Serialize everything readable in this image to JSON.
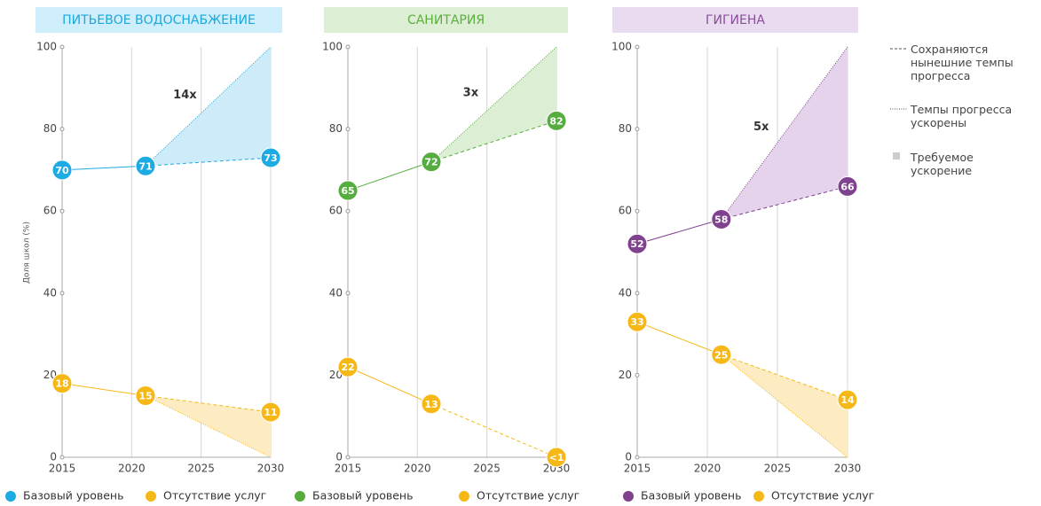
{
  "chart_data": [
    {
      "type": "line",
      "title": "ПИТЬЕВОЕ ВОДОСНАБЖЕНИЕ",
      "ylabel": "Доля школ (%)",
      "title_color": "#1ca8dd",
      "title_bg": "#cdeefa",
      "x": [
        2015,
        2021,
        2030
      ],
      "xlim": [
        2015,
        2030
      ],
      "xticks": [
        2015,
        2020,
        2025,
        2030
      ],
      "ylim": [
        0,
        100
      ],
      "yticks": [
        0,
        20,
        40,
        60,
        80,
        100
      ],
      "grid": true,
      "annotation": "14x",
      "series": [
        {
          "name": "Базовый уровень",
          "color": "#1cabe2",
          "shade": "#cdebf8",
          "values": [
            70,
            71,
            73
          ],
          "accelerated_target": 100
        },
        {
          "name": "Отсутствие услуг",
          "color": "#f6b816",
          "shade": "#fdebc2",
          "values": [
            18,
            15,
            11
          ],
          "accelerated_target": 0
        }
      ]
    },
    {
      "type": "line",
      "title": "САНИТАРИЯ",
      "title_color": "#5cae3e",
      "title_bg": "#dcefd5",
      "x": [
        2015,
        2021,
        2030
      ],
      "xlim": [
        2015,
        2030
      ],
      "xticks": [
        2015,
        2020,
        2025,
        2030
      ],
      "ylim": [
        0,
        100
      ],
      "yticks": [
        0,
        20,
        40,
        60,
        80,
        100
      ],
      "grid": true,
      "annotation": "3x",
      "series": [
        {
          "name": "Базовый уровень",
          "color": "#56ad3f",
          "shade": "#dcefd5",
          "values": [
            65,
            72,
            82
          ],
          "accelerated_target": 100
        },
        {
          "name": "Отсутствие услуг",
          "color": "#f6b816",
          "shade": "#fdebc2",
          "values": [
            22,
            13,
            0
          ],
          "value_labels": [
            "22",
            "13",
            "<1"
          ]
        }
      ]
    },
    {
      "type": "line",
      "title": "ГИГИЕНА",
      "title_color": "#8a4d9a",
      "title_bg": "#eadcf0",
      "x": [
        2015,
        2021,
        2030
      ],
      "xlim": [
        2015,
        2030
      ],
      "xticks": [
        2015,
        2020,
        2025,
        2030
      ],
      "ylim": [
        0,
        100
      ],
      "yticks": [
        0,
        20,
        40,
        60,
        80,
        100
      ],
      "grid": true,
      "annotation": "5x",
      "series": [
        {
          "name": "Базовый уровень",
          "color": "#80418f",
          "shade": "#e4d3ea",
          "values": [
            52,
            58,
            66
          ],
          "accelerated_target": 100
        },
        {
          "name": "Отсутствие услуг",
          "color": "#f6b816",
          "shade": "#fdebc2",
          "values": [
            33,
            25,
            14
          ],
          "accelerated_target": 0
        }
      ]
    }
  ],
  "legend": {
    "items": [
      "Сохраняются нынешние темпы прогресса",
      "Темпы прогресса ускорены",
      "Требуемое ускорение"
    ]
  }
}
